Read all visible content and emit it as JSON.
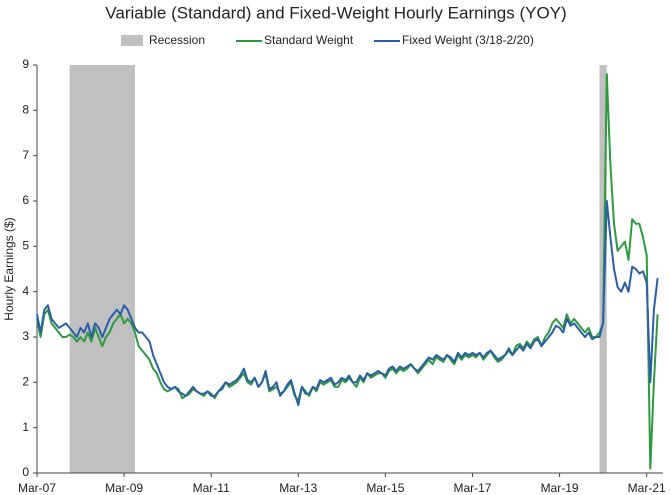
{
  "chart_data": {
    "type": "line",
    "title": "Variable (Standard) and Fixed-Weight Hourly Earnings (YOY)",
    "y_label": "Hourly Earnings ($)",
    "categories": [
      "Mar-07",
      null,
      null,
      null,
      null,
      null,
      null,
      null,
      null,
      null,
      null,
      null,
      null,
      null,
      null,
      null,
      null,
      null,
      null,
      null,
      null,
      null,
      null,
      null,
      "Mar-09",
      null,
      null,
      null,
      null,
      null,
      null,
      null,
      null,
      null,
      null,
      null,
      null,
      null,
      null,
      null,
      null,
      null,
      null,
      null,
      null,
      null,
      null,
      null,
      "Mar-11",
      null,
      null,
      null,
      null,
      null,
      null,
      null,
      null,
      null,
      null,
      null,
      null,
      null,
      null,
      null,
      null,
      null,
      null,
      null,
      null,
      null,
      null,
      null,
      "Mar-13",
      null,
      null,
      null,
      null,
      null,
      null,
      null,
      null,
      null,
      null,
      null,
      null,
      null,
      null,
      null,
      null,
      null,
      null,
      null,
      null,
      null,
      null,
      null,
      "Mar-15",
      null,
      null,
      null,
      null,
      null,
      null,
      null,
      null,
      null,
      null,
      null,
      null,
      null,
      null,
      null,
      null,
      null,
      null,
      null,
      null,
      null,
      null,
      null,
      "Mar-17",
      null,
      null,
      null,
      null,
      null,
      null,
      null,
      null,
      null,
      null,
      null,
      null,
      null,
      null,
      null,
      null,
      null,
      null,
      null,
      null,
      null,
      null,
      null,
      "Mar-19",
      null,
      null,
      null,
      null,
      null,
      null,
      null,
      null,
      null,
      null,
      null,
      null,
      null,
      null,
      null,
      null,
      null,
      null,
      null,
      null,
      null,
      null,
      null,
      "Mar-21",
      null,
      null,
      null
    ],
    "recession": {
      "name": "Recession",
      "color": "#c0c0c0",
      "spans": [
        [
          9,
          27
        ],
        [
          155,
          157
        ]
      ]
    },
    "series": [
      {
        "name": "Standard Weight",
        "color": "#2e9a3e",
        "values": [
          3.4,
          3.0,
          3.5,
          3.6,
          3.3,
          3.2,
          3.1,
          3.0,
          3.0,
          3.05,
          3.0,
          2.9,
          3.0,
          2.9,
          3.1,
          2.9,
          3.2,
          3.0,
          2.8,
          3.0,
          3.1,
          3.3,
          3.4,
          3.5,
          3.3,
          3.4,
          3.3,
          3.1,
          2.8,
          2.7,
          2.6,
          2.5,
          2.3,
          2.2,
          2.0,
          1.85,
          1.8,
          1.85,
          1.9,
          1.85,
          1.65,
          1.7,
          1.75,
          1.85,
          1.8,
          1.75,
          1.7,
          1.8,
          1.75,
          1.65,
          1.8,
          1.9,
          2.0,
          1.9,
          1.95,
          2.0,
          2.1,
          2.2,
          2.0,
          1.95,
          2.1,
          1.9,
          2.0,
          2.2,
          1.8,
          1.85,
          1.9,
          1.75,
          1.8,
          1.9,
          2.0,
          1.7,
          1.6,
          1.9,
          1.8,
          1.7,
          1.9,
          1.8,
          2.0,
          1.95,
          2.0,
          2.05,
          1.9,
          1.9,
          2.05,
          2.0,
          2.1,
          2.0,
          1.9,
          2.1,
          2.0,
          2.2,
          2.1,
          2.15,
          2.2,
          2.2,
          2.1,
          2.25,
          2.3,
          2.2,
          2.3,
          2.25,
          2.3,
          2.4,
          2.3,
          2.2,
          2.3,
          2.4,
          2.5,
          2.4,
          2.55,
          2.5,
          2.45,
          2.6,
          2.5,
          2.4,
          2.6,
          2.5,
          2.6,
          2.55,
          2.6,
          2.55,
          2.65,
          2.5,
          2.6,
          2.7,
          2.55,
          2.45,
          2.5,
          2.6,
          2.7,
          2.6,
          2.8,
          2.85,
          2.75,
          2.9,
          2.8,
          2.95,
          3.0,
          2.8,
          3.0,
          3.1,
          3.3,
          3.4,
          3.3,
          3.2,
          3.5,
          3.3,
          3.4,
          3.3,
          3.2,
          3.1,
          3.2,
          3.0,
          3.0,
          3.1,
          3.3,
          8.8,
          6.8,
          5.5,
          4.9,
          5.0,
          5.1,
          4.7,
          5.6,
          5.5,
          5.5,
          5.2,
          4.8,
          0.1,
          2.0,
          3.5
        ]
      },
      {
        "name": "Fixed Weight (3/18-2/20)",
        "color": "#2a5ea8",
        "values": [
          3.5,
          3.1,
          3.6,
          3.7,
          3.4,
          3.3,
          3.2,
          3.25,
          3.3,
          3.2,
          3.1,
          3.0,
          3.2,
          3.1,
          3.3,
          3.0,
          3.3,
          3.2,
          3.0,
          3.2,
          3.4,
          3.5,
          3.6,
          3.5,
          3.7,
          3.6,
          3.4,
          3.2,
          3.1,
          3.1,
          3.0,
          2.9,
          2.6,
          2.4,
          2.2,
          2.0,
          1.9,
          1.85,
          1.9,
          1.8,
          1.75,
          1.7,
          1.8,
          1.9,
          1.8,
          1.75,
          1.75,
          1.8,
          1.7,
          1.7,
          1.8,
          1.85,
          2.0,
          1.95,
          2.0,
          2.05,
          2.15,
          2.3,
          2.05,
          2.0,
          2.1,
          1.9,
          2.0,
          2.25,
          1.85,
          1.9,
          2.0,
          1.7,
          1.8,
          1.95,
          2.05,
          1.75,
          1.5,
          1.9,
          1.75,
          1.75,
          1.9,
          1.85,
          2.05,
          2.0,
          2.05,
          2.1,
          1.95,
          2.0,
          2.1,
          2.05,
          2.15,
          2.0,
          2.0,
          2.15,
          2.05,
          2.2,
          2.15,
          2.2,
          2.25,
          2.2,
          2.15,
          2.3,
          2.35,
          2.25,
          2.35,
          2.3,
          2.35,
          2.4,
          2.3,
          2.25,
          2.35,
          2.45,
          2.55,
          2.5,
          2.6,
          2.55,
          2.5,
          2.6,
          2.55,
          2.45,
          2.65,
          2.55,
          2.65,
          2.6,
          2.65,
          2.6,
          2.65,
          2.55,
          2.65,
          2.7,
          2.6,
          2.5,
          2.55,
          2.6,
          2.75,
          2.6,
          2.7,
          2.8,
          2.7,
          2.85,
          2.75,
          2.9,
          2.95,
          2.8,
          2.9,
          3.0,
          3.1,
          3.25,
          3.2,
          3.1,
          3.4,
          3.25,
          3.3,
          3.2,
          3.1,
          3.0,
          3.1,
          2.95,
          3.0,
          3.0,
          3.3,
          6.0,
          5.2,
          4.5,
          4.1,
          4.0,
          4.2,
          4.0,
          4.55,
          4.5,
          4.4,
          4.45,
          4.2,
          2.0,
          3.6,
          4.3
        ]
      }
    ],
    "ylim": [
      0,
      9
    ],
    "yticks": [
      0,
      1,
      2,
      3,
      4,
      5,
      6,
      7,
      8,
      9
    ]
  }
}
